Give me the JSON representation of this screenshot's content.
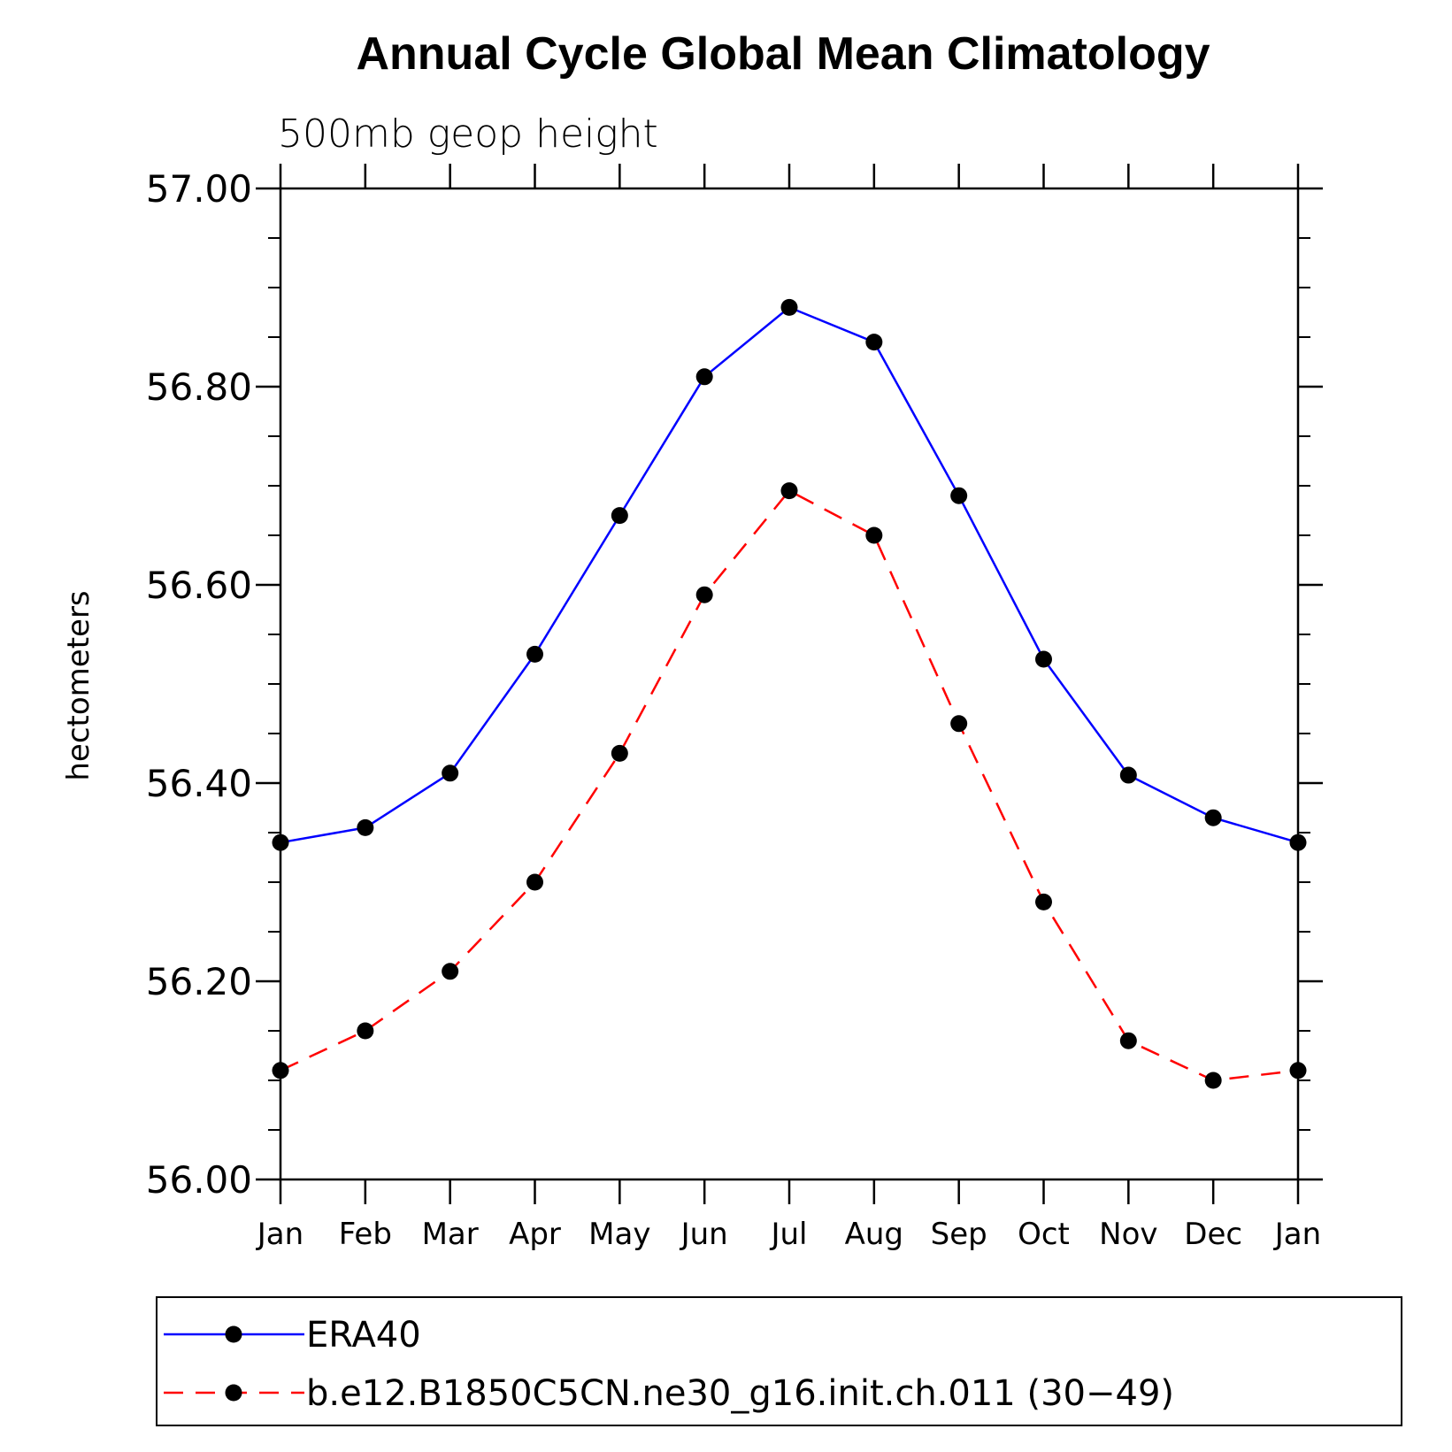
{
  "chart_data": {
    "type": "line",
    "title": "Annual Cycle Global Mean Climatology",
    "subtitle": "500mb geop height",
    "xlabel": "",
    "ylabel": "hectometers",
    "ylim": [
      56.0,
      57.0
    ],
    "yticks": [
      "56.00",
      "56.20",
      "56.40",
      "56.60",
      "56.80",
      "57.00"
    ],
    "categories": [
      "Jan",
      "Feb",
      "Mar",
      "Apr",
      "May",
      "Jun",
      "Jul",
      "Aug",
      "Sep",
      "Oct",
      "Nov",
      "Dec",
      "Jan"
    ],
    "grid": false,
    "legend_position": "bottom",
    "series": [
      {
        "name": "ERA40",
        "color": "#0000ff",
        "line_style": "solid",
        "marker": "filled-circle",
        "values": [
          56.34,
          56.355,
          56.41,
          56.53,
          56.67,
          56.81,
          56.88,
          56.845,
          56.69,
          56.525,
          56.408,
          56.365,
          56.34
        ]
      },
      {
        "name": "b.e12.B1850C5CN.ne30_g16.init.ch.011 (30−49)",
        "color": "#ff0000",
        "line_style": "dashed",
        "marker": "filled-circle",
        "values": [
          56.11,
          56.15,
          56.21,
          56.3,
          56.43,
          56.59,
          56.695,
          56.65,
          56.46,
          56.28,
          56.14,
          56.1,
          56.11
        ]
      }
    ]
  }
}
